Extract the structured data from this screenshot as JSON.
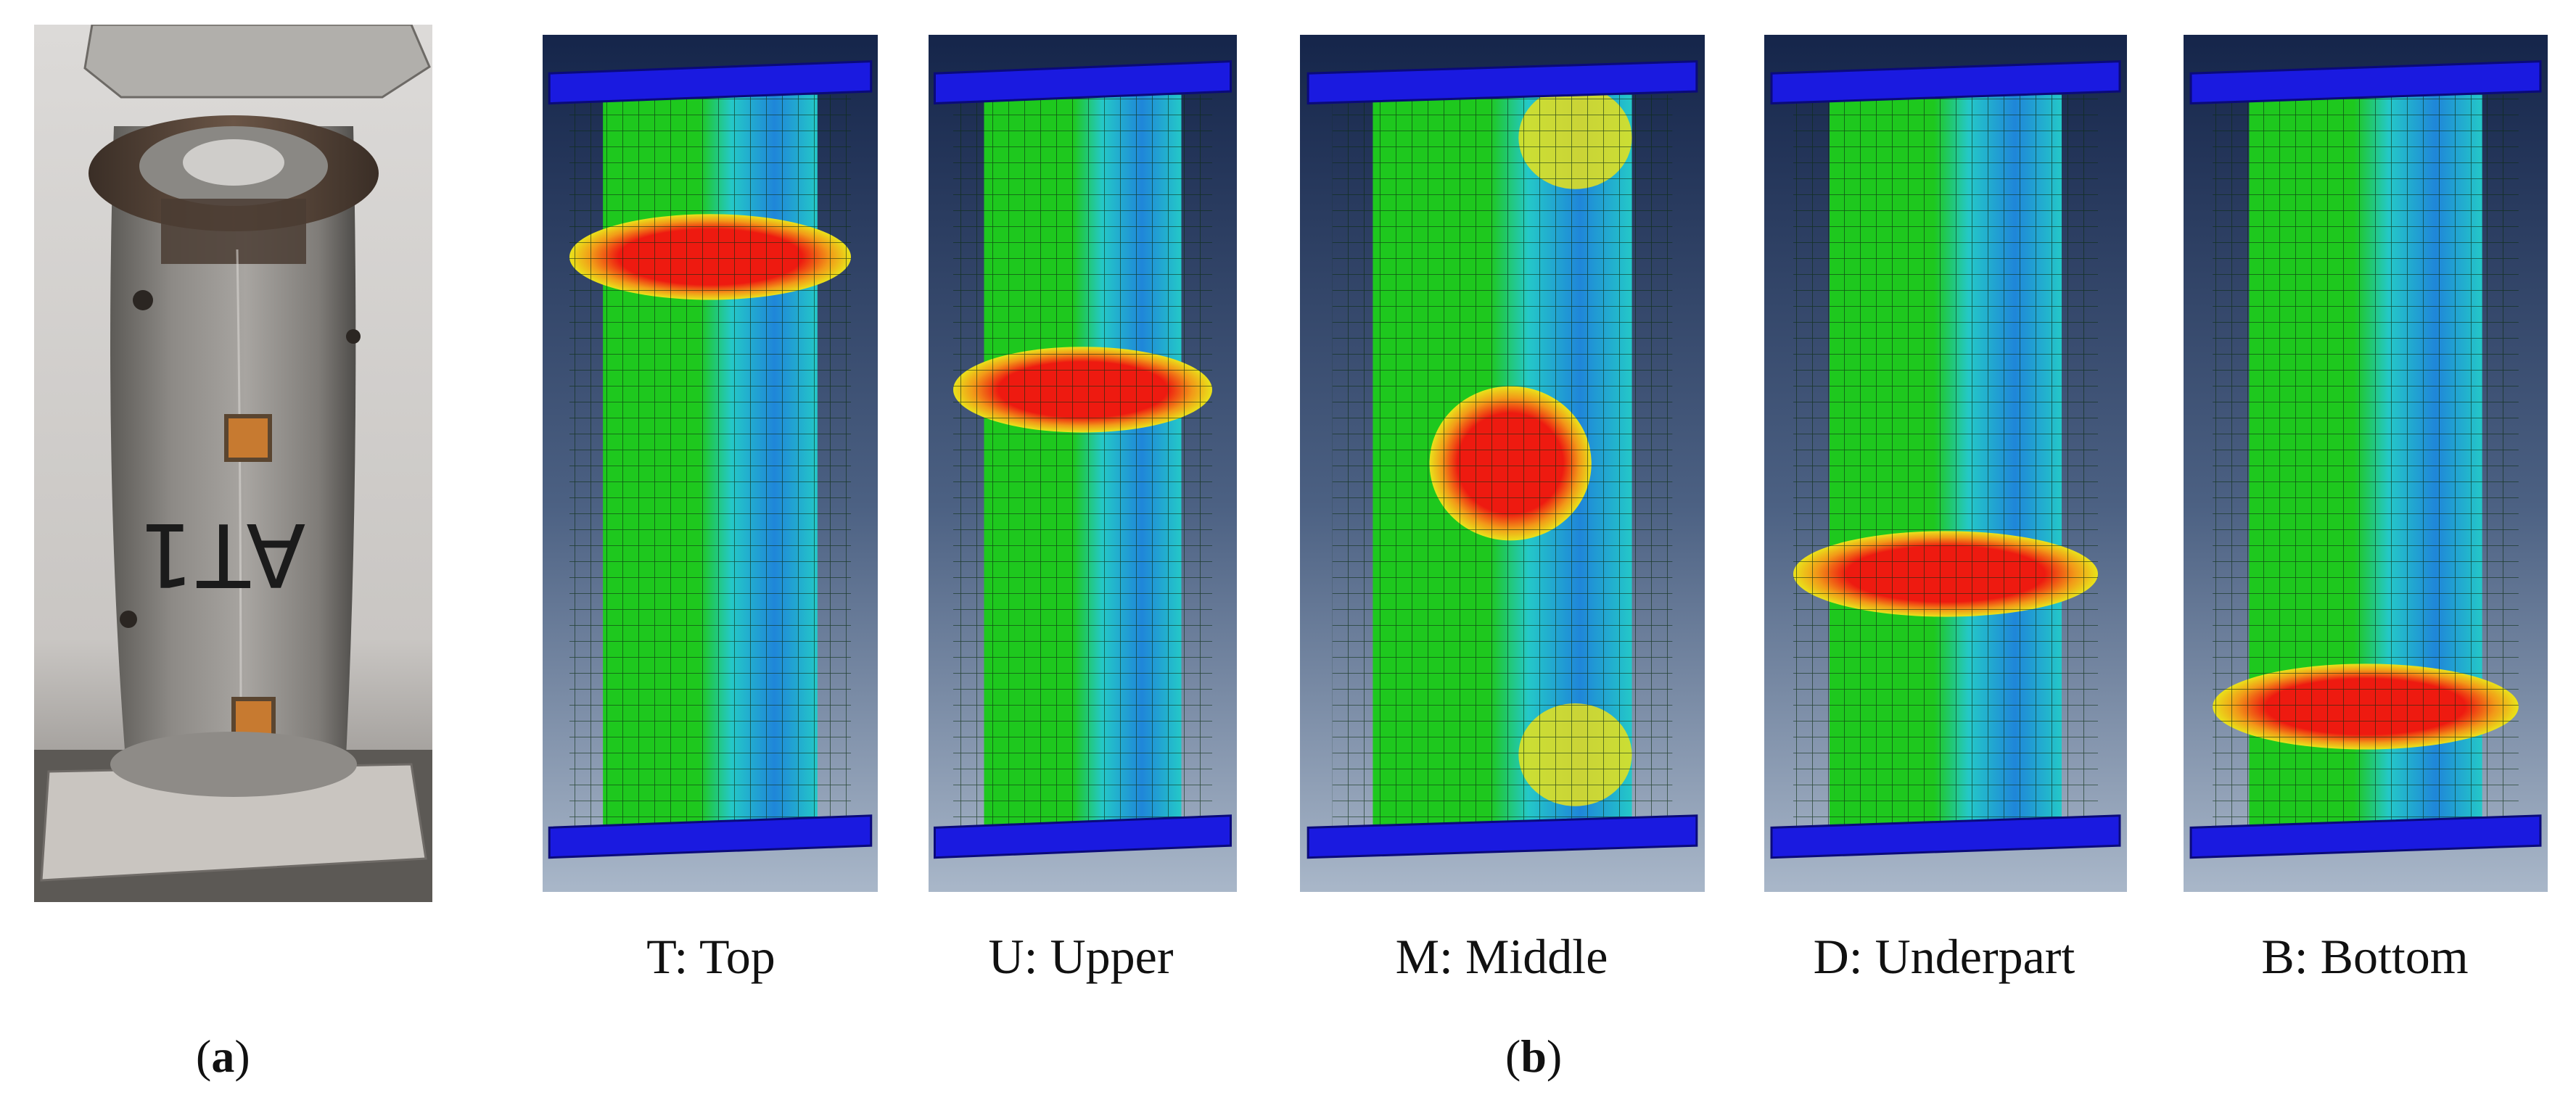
{
  "figure": {
    "panels": [
      {
        "id": "a",
        "label": "a",
        "kind": "photo",
        "specimen_mark": "AT1"
      },
      {
        "id": "b",
        "label": "b",
        "kind": "fea-models"
      }
    ],
    "models": [
      {
        "id": "T",
        "caption": "T: Top",
        "bulge_position": 0.22
      },
      {
        "id": "U",
        "caption": "U: Upper",
        "bulge_position": 0.4
      },
      {
        "id": "M",
        "caption": "M: Middle",
        "bulge_position": 0.5
      },
      {
        "id": "D",
        "caption": "D: Underpart",
        "bulge_position": 0.65
      },
      {
        "id": "B",
        "caption": "B: Bottom",
        "bulge_position": 0.83
      }
    ],
    "colors": {
      "plate": "#1a1ae0",
      "stress_high": "#ee1a10",
      "stress_mid": "#e9e21a",
      "stress_base": "#1ec81e",
      "stress_low": "#24c8c8",
      "stress_min": "#1f86d9",
      "bg_top": "#15254a",
      "bg_bottom": "#a9b7c9"
    }
  }
}
